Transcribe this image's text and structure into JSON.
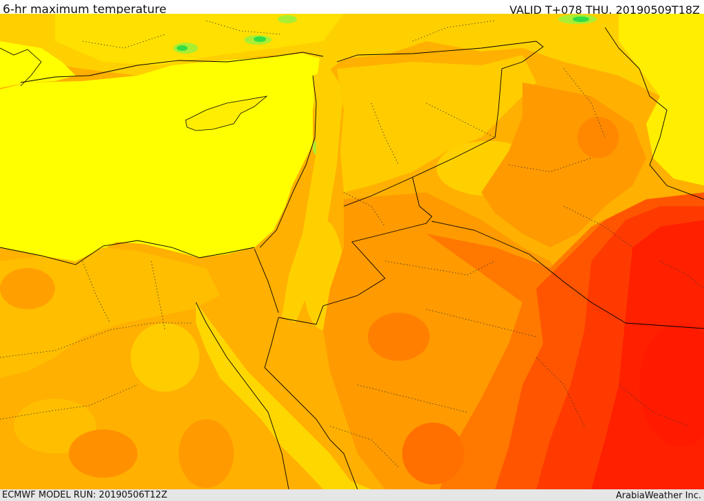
{
  "header": {
    "title": "6-hr maximum temperature",
    "valid_time": "VALID T+078 THU. 20190509T18Z"
  },
  "footer": {
    "model_run": "ECMWF MODEL RUN: 20190506T12Z",
    "credit": "ArabiaWeather Inc."
  },
  "map": {
    "palette": {
      "sea": "#ffff00",
      "cool_green": "#33dd44",
      "light_green": "#aaee33",
      "yellow_gold": "#ffd700",
      "light_orange": "#ffaa00",
      "orange": "#ff8c00",
      "dark_orange": "#ff6a00",
      "red_orange": "#ff4400",
      "red": "#ff1a00",
      "border_color": "#000000"
    }
  }
}
